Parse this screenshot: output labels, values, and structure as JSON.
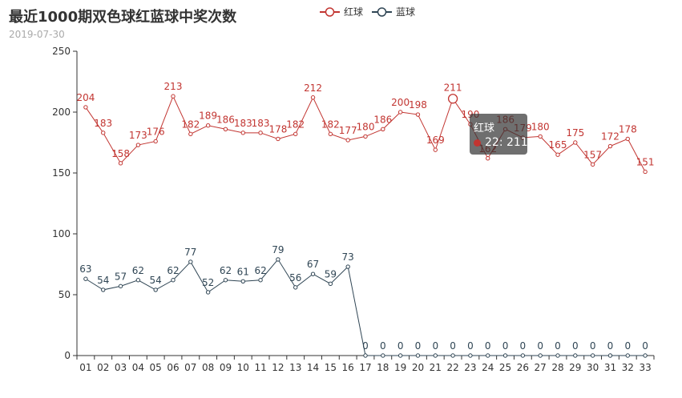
{
  "title": "最近1000期双色球红蓝球中奖次数",
  "subtitle": "2019-07-30",
  "colors": {
    "red": "#c23531",
    "blue": "#2f4554",
    "axis": "#333333"
  },
  "legend": [
    {
      "name": "红球",
      "color": "#c23531"
    },
    {
      "name": "蓝球",
      "color": "#2f4554"
    }
  ],
  "tooltip": {
    "title": "红球",
    "label": "22: 211",
    "color": "#c23531"
  },
  "chart_data": {
    "type": "line",
    "title": "最近1000期双色球红蓝球中奖次数",
    "subtitle": "2019-07-30",
    "categories": [
      "01",
      "02",
      "03",
      "04",
      "05",
      "06",
      "07",
      "08",
      "09",
      "10",
      "11",
      "12",
      "13",
      "14",
      "15",
      "16",
      "17",
      "18",
      "19",
      "20",
      "21",
      "22",
      "23",
      "24",
      "25",
      "26",
      "27",
      "28",
      "29",
      "30",
      "31",
      "32",
      "33"
    ],
    "ylim": [
      0,
      250
    ],
    "yticks": [
      0,
      50,
      100,
      150,
      200,
      250
    ],
    "grid": false,
    "legend_position": "top-center",
    "highlight": {
      "series": "红球",
      "category": "22"
    },
    "series": [
      {
        "name": "红球",
        "color": "#c23531",
        "values": [
          204,
          183,
          158,
          173,
          176,
          213,
          182,
          189,
          186,
          183,
          183,
          178,
          182,
          212,
          182,
          177,
          180,
          186,
          200,
          198,
          169,
          211,
          190,
          162,
          186,
          179,
          180,
          165,
          175,
          157,
          172,
          178,
          151
        ]
      },
      {
        "name": "蓝球",
        "color": "#2f4554",
        "values": [
          63,
          54,
          57,
          62,
          54,
          62,
          77,
          52,
          62,
          61,
          62,
          79,
          56,
          67,
          59,
          73,
          0,
          0,
          0,
          0,
          0,
          0,
          0,
          0,
          0,
          0,
          0,
          0,
          0,
          0,
          0,
          0,
          0
        ]
      }
    ]
  }
}
